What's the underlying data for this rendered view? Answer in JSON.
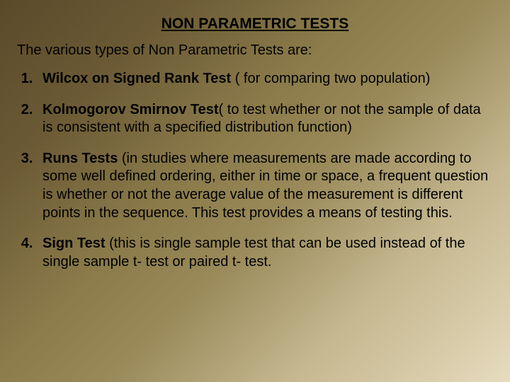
{
  "title": "NON PARAMETRIC TESTS",
  "intro": "The various types of Non Parametric Tests are:",
  "items": [
    {
      "name": "Wilcox on Signed Rank Test ",
      "desc": "( for comparing two population)"
    },
    {
      "name": "Kolmogorov Smirnov Test",
      "desc": "( to test whether or not the sample of data is consistent with a specified distribution function)"
    },
    {
      "name": "Runs Tests ",
      "desc": "(in studies where measurements are made according to some well defined ordering, either in time or space, a frequent question is whether or not the average value of the measurement is different points in the sequence. This test provides a means of testing this."
    },
    {
      "name": "Sign Test ",
      "desc": "(this is single sample test that can be used instead of the single sample t- test or paired t- test."
    }
  ],
  "colors": {
    "text": "#000000",
    "bg_start": "#5a4a2a",
    "bg_end": "#e8dcc0"
  },
  "typography": {
    "title_fontsize": 21,
    "body_fontsize": 20,
    "line_height": 1.28,
    "font_family": "Arial"
  }
}
